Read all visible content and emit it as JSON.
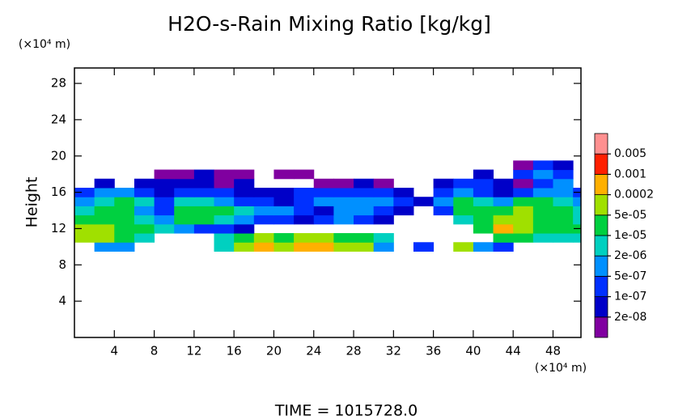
{
  "chart_data": {
    "type": "contour",
    "title": "H2O-s-Rain Mixing Ratio [kg/kg]",
    "y_unit": "(×10⁴ m)",
    "x_unit": "(×10⁴ m)",
    "ylabel": "Height",
    "footer": "TIME = 1015728.0",
    "xlim": [
      0,
      50.8
    ],
    "ylim": [
      0,
      29.7
    ],
    "xticks": [
      4,
      8,
      12,
      16,
      20,
      24,
      28,
      32,
      36,
      40,
      44,
      48
    ],
    "yticks": [
      4,
      8,
      12,
      16,
      20,
      24,
      28
    ],
    "levels": [
      {
        "value": 2e-08,
        "label": "2e-08"
      },
      {
        "value": 1e-07,
        "label": "1e-07"
      },
      {
        "value": 5e-07,
        "label": "5e-07"
      },
      {
        "value": 2e-06,
        "label": "2e-06"
      },
      {
        "value": 1e-05,
        "label": "1e-05"
      },
      {
        "value": 5e-05,
        "label": "5e-05"
      },
      0.0002,
      0.001,
      0.005
    ],
    "colors": [
      "#8000a0",
      "#0000c8",
      "#0030ff",
      "#0090ff",
      "#00d0c0",
      "#00d040",
      "#a0e000",
      "#ffb000",
      "#ff2000",
      "#ff9090"
    ],
    "x": [
      1,
      3,
      5,
      7,
      9,
      11,
      13,
      15,
      17,
      19,
      21,
      23,
      25,
      27,
      29,
      31,
      33,
      35,
      37,
      39,
      41,
      43,
      45,
      47,
      49,
      51
    ],
    "y": [
      10,
      11,
      12,
      13,
      14,
      15,
      16,
      17,
      18,
      19
    ],
    "z": [
      [
        null,
        1e-06,
        1e-06,
        null,
        null,
        null,
        null,
        5e-06,
        0.0001,
        0.0005,
        0.0001,
        0.0005,
        0.0005,
        0.0001,
        0.0001,
        1e-06,
        null,
        2e-07,
        null,
        0.0001,
        1e-06,
        2e-07,
        null,
        null,
        null,
        null
      ],
      [
        0.0001,
        0.0001,
        2e-05,
        5e-06,
        null,
        null,
        null,
        5e-06,
        2e-05,
        0.0001,
        2e-05,
        0.0001,
        0.0001,
        2e-05,
        2e-05,
        5e-06,
        null,
        null,
        null,
        null,
        null,
        2e-05,
        2e-05,
        5e-06,
        5e-06,
        5e-06
      ],
      [
        0.0001,
        0.0001,
        2e-05,
        2e-05,
        5e-06,
        1e-06,
        2e-07,
        2e-07,
        5e-08,
        null,
        null,
        null,
        null,
        null,
        null,
        null,
        null,
        null,
        null,
        null,
        2e-05,
        0.0005,
        0.0001,
        2e-05,
        2e-05,
        2e-05
      ],
      [
        2e-05,
        2e-05,
        2e-05,
        5e-06,
        1e-06,
        2e-05,
        2e-05,
        5e-06,
        1e-06,
        2e-07,
        2e-07,
        5e-08,
        2e-07,
        1e-06,
        2e-07,
        5e-08,
        null,
        null,
        null,
        5e-06,
        2e-05,
        0.0001,
        0.0001,
        2e-05,
        2e-05,
        5e-06
      ],
      [
        5e-06,
        2e-05,
        2e-05,
        1e-06,
        2e-07,
        2e-05,
        2e-05,
        2e-05,
        5e-06,
        1e-06,
        1e-06,
        2e-07,
        5e-08,
        1e-06,
        1e-06,
        2e-07,
        5e-08,
        null,
        2e-07,
        2e-05,
        2e-05,
        2e-05,
        0.0001,
        2e-05,
        2e-05,
        5e-06
      ],
      [
        1e-06,
        5e-06,
        2e-05,
        5e-06,
        2e-07,
        5e-06,
        5e-06,
        1e-06,
        2e-07,
        2e-07,
        5e-08,
        2e-07,
        1e-06,
        1e-06,
        1e-06,
        1e-06,
        2e-07,
        5e-08,
        1e-06,
        2e-05,
        5e-06,
        1e-06,
        2e-05,
        2e-05,
        5e-06,
        1e-06
      ],
      [
        2e-07,
        1e-06,
        1e-06,
        2e-07,
        5e-08,
        2e-07,
        2e-07,
        2e-07,
        5e-08,
        5e-08,
        5e-08,
        2e-07,
        2e-07,
        2e-07,
        2e-07,
        2e-07,
        5e-08,
        null,
        2e-07,
        1e-06,
        2e-07,
        5e-08,
        2e-07,
        1e-06,
        1e-06,
        2e-07
      ],
      [
        null,
        5e-08,
        null,
        5e-08,
        5e-08,
        5e-08,
        5e-08,
        1e-08,
        5e-08,
        null,
        null,
        null,
        1e-08,
        1e-08,
        5e-08,
        1e-08,
        null,
        null,
        5e-08,
        2e-07,
        2e-07,
        5e-08,
        1e-08,
        2e-07,
        1e-06,
        null
      ],
      [
        null,
        null,
        null,
        null,
        1e-08,
        1e-08,
        5e-08,
        1e-08,
        1e-08,
        null,
        1e-08,
        1e-08,
        null,
        null,
        null,
        null,
        null,
        null,
        null,
        null,
        5e-08,
        null,
        2e-07,
        1e-06,
        2e-07,
        null
      ],
      [
        null,
        null,
        null,
        null,
        null,
        null,
        null,
        null,
        null,
        null,
        null,
        null,
        null,
        null,
        null,
        null,
        null,
        null,
        null,
        null,
        null,
        null,
        1e-08,
        2e-07,
        5e-08,
        null
      ]
    ]
  }
}
